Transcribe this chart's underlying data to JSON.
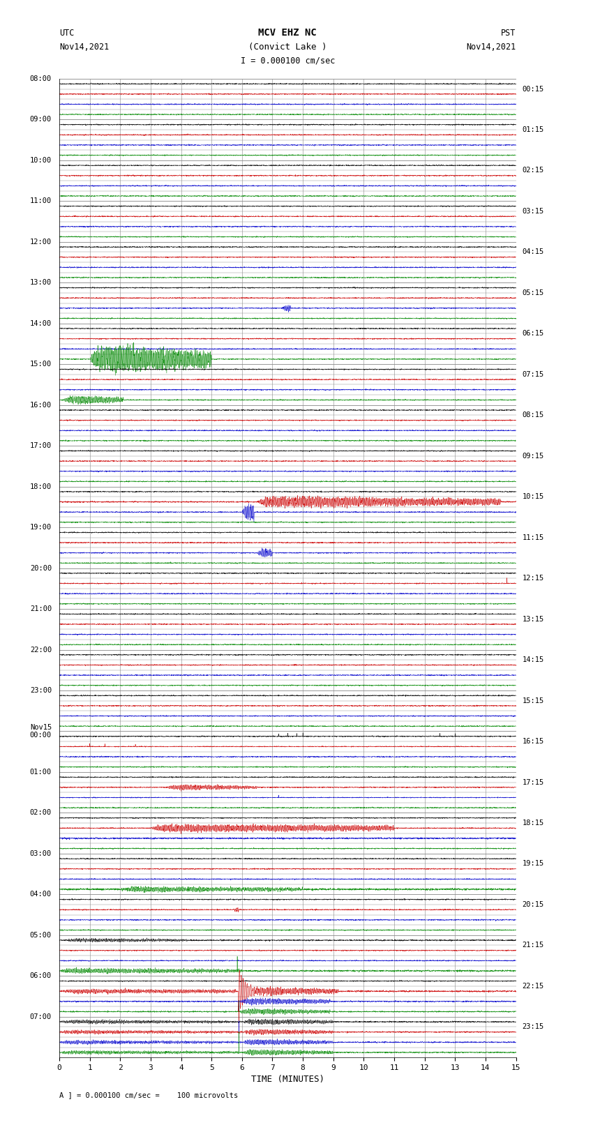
{
  "title_line1": "MCV EHZ NC",
  "title_line2": "(Convict Lake )",
  "title_line3": "I = 0.000100 cm/sec",
  "label_utc_line1": "UTC",
  "label_utc_line2": "Nov14,2021",
  "label_pst_line1": "PST",
  "label_pst_line2": "Nov14,2021",
  "xlabel": "TIME (MINUTES)",
  "footer": "A ] = 0.000100 cm/sec =    100 microvolts",
  "xlim": [
    0,
    15
  ],
  "xticks": [
    0,
    1,
    2,
    3,
    4,
    5,
    6,
    7,
    8,
    9,
    10,
    11,
    12,
    13,
    14,
    15
  ],
  "background_color": "#ffffff",
  "grid_color": "#aaaaaa",
  "left_times_utc": [
    "08:00",
    "09:00",
    "10:00",
    "11:00",
    "12:00",
    "13:00",
    "14:00",
    "15:00",
    "16:00",
    "17:00",
    "18:00",
    "19:00",
    "20:00",
    "21:00",
    "22:00",
    "23:00",
    "Nov15\n00:00",
    "01:00",
    "02:00",
    "03:00",
    "04:00",
    "05:00",
    "06:00",
    "07:00"
  ],
  "right_times_pst": [
    "00:15",
    "01:15",
    "02:15",
    "03:15",
    "04:15",
    "05:15",
    "06:15",
    "07:15",
    "08:15",
    "09:15",
    "10:15",
    "11:15",
    "12:15",
    "13:15",
    "14:15",
    "15:15",
    "16:15",
    "17:15",
    "18:15",
    "19:15",
    "20:15",
    "21:15",
    "22:15",
    "23:15"
  ],
  "n_hours": 24,
  "traces_per_hour": 4,
  "colors_cycle": [
    "#000000",
    "#cc0000",
    "#0000cc",
    "#008800"
  ],
  "seed": 42
}
